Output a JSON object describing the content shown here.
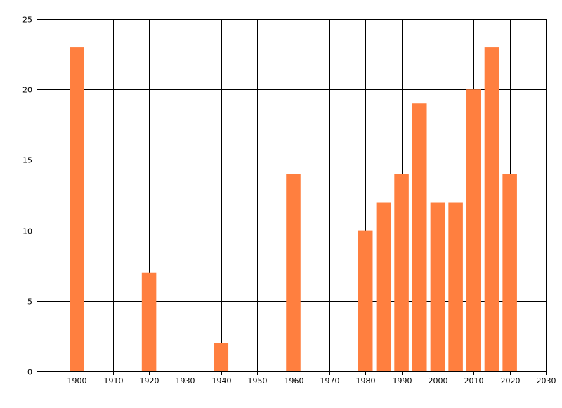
{
  "chart_data": {
    "type": "bar",
    "x": [
      1900,
      1920,
      1940,
      1960,
      1980,
      1985,
      1990,
      1995,
      2000,
      2005,
      2010,
      2015,
      2020
    ],
    "values": [
      23,
      7,
      2,
      14,
      10,
      12,
      14,
      19,
      12,
      12,
      20,
      23,
      14
    ],
    "x_ticks": [
      "1900",
      "1910",
      "1920",
      "1930",
      "1940",
      "1950",
      "1960",
      "1970",
      "1980",
      "1990",
      "2000",
      "2010",
      "2020",
      "2030"
    ],
    "y_ticks": [
      "0",
      "5",
      "10",
      "15",
      "20",
      "25"
    ],
    "xlim": [
      1890,
      2030
    ],
    "ylim": [
      0,
      25
    ],
    "title": "",
    "xlabel": "",
    "ylabel": "",
    "grid": true,
    "bar_width_years": 4,
    "colors": {
      "bar": "#ff7f3f",
      "grid": "#000000",
      "background": "#ffffff"
    }
  }
}
